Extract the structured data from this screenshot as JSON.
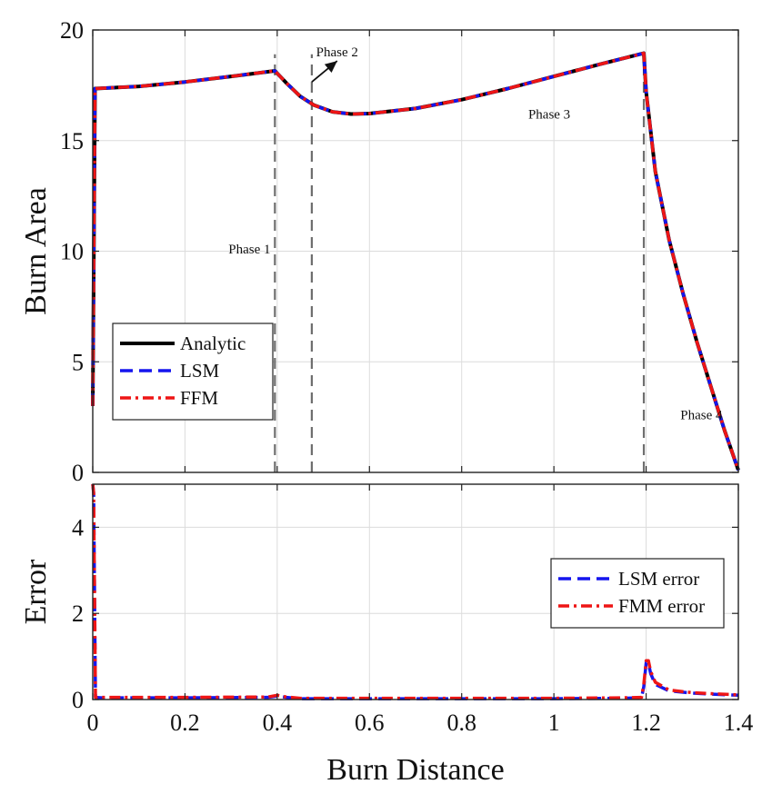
{
  "chart_data": [
    {
      "type": "line",
      "xlabel": "",
      "ylabel": "Burn Area",
      "xlim": [
        0,
        1.4
      ],
      "ylim": [
        0,
        20
      ],
      "xticks": [
        0,
        0.2,
        0.4,
        0.6,
        0.8,
        1,
        1.2,
        1.4
      ],
      "xtick_labels": [
        "",
        "",
        "",
        "",
        "",
        "",
        "",
        ""
      ],
      "yticks": [
        0,
        5,
        10,
        15,
        20
      ],
      "ytick_labels": [
        "0",
        "5",
        "10",
        "15",
        "20"
      ],
      "grid": true,
      "legend_position": "lower-left",
      "series": [
        {
          "name": "Analytic",
          "color": "#000000",
          "style": "solid",
          "x": [
            0,
            0.005,
            0.1,
            0.2,
            0.3,
            0.395,
            0.42,
            0.45,
            0.48,
            0.52,
            0.56,
            0.6,
            0.7,
            0.8,
            0.9,
            1.0,
            1.1,
            1.195,
            1.2,
            1.22,
            1.25,
            1.28,
            1.31,
            1.34,
            1.37,
            1.4
          ],
          "y": [
            3.0,
            17.35,
            17.45,
            17.65,
            17.9,
            18.15,
            17.6,
            17.0,
            16.6,
            16.3,
            16.2,
            16.22,
            16.45,
            16.85,
            17.35,
            17.9,
            18.45,
            18.95,
            17.2,
            13.6,
            10.5,
            8.1,
            5.9,
            3.9,
            1.9,
            0.1
          ]
        },
        {
          "name": "LSM",
          "color": "#1515ee",
          "style": "dashed",
          "x": [
            0,
            0.005,
            0.1,
            0.2,
            0.3,
            0.395,
            0.42,
            0.45,
            0.48,
            0.52,
            0.56,
            0.6,
            0.7,
            0.8,
            0.9,
            1.0,
            1.1,
            1.195,
            1.2,
            1.22,
            1.25,
            1.28,
            1.31,
            1.34,
            1.37,
            1.4
          ],
          "y": [
            3.0,
            17.35,
            17.45,
            17.65,
            17.9,
            18.15,
            17.6,
            17.0,
            16.6,
            16.3,
            16.2,
            16.22,
            16.45,
            16.85,
            17.35,
            17.9,
            18.45,
            18.95,
            17.2,
            13.6,
            10.5,
            8.1,
            5.9,
            3.9,
            1.9,
            0.1
          ]
        },
        {
          "name": "FFM",
          "color": "#ee1515",
          "style": "dashdot",
          "x": [
            0,
            0.005,
            0.1,
            0.2,
            0.3,
            0.395,
            0.42,
            0.45,
            0.48,
            0.52,
            0.56,
            0.6,
            0.7,
            0.8,
            0.9,
            1.0,
            1.1,
            1.195,
            1.2,
            1.22,
            1.25,
            1.28,
            1.31,
            1.34,
            1.37,
            1.4
          ],
          "y": [
            3.0,
            17.35,
            17.45,
            17.65,
            17.9,
            18.15,
            17.6,
            17.0,
            16.6,
            16.3,
            16.2,
            16.22,
            16.45,
            16.85,
            17.35,
            17.9,
            18.45,
            18.95,
            17.2,
            13.6,
            10.5,
            8.1,
            5.9,
            3.9,
            1.9,
            0.1
          ]
        }
      ],
      "phase_boundaries": [
        0.395,
        0.475,
        1.195
      ],
      "annotations": [
        {
          "text": "Phase 1",
          "x": 0.34,
          "y": 9.9
        },
        {
          "text": "Phase 2",
          "x": 0.53,
          "y": 18.8
        },
        {
          "text": "Phase 3",
          "x": 0.99,
          "y": 16.0
        },
        {
          "text": "Phase 4",
          "x": 1.32,
          "y": 2.4
        }
      ],
      "arrow": {
        "from": [
          0.475,
          17.65
        ],
        "to": [
          0.53,
          18.6
        ]
      }
    },
    {
      "type": "line",
      "xlabel": "Burn Distance",
      "ylabel": "Error",
      "xlim": [
        0,
        1.4
      ],
      "ylim": [
        0,
        5
      ],
      "xticks": [
        0,
        0.2,
        0.4,
        0.6,
        0.8,
        1,
        1.2,
        1.4
      ],
      "xtick_labels": [
        "0",
        "0.2",
        "0.4",
        "0.6",
        "0.8",
        "1",
        "1.2",
        "1.4"
      ],
      "yticks": [
        0,
        2,
        4
      ],
      "ytick_labels": [
        "0",
        "2",
        "4"
      ],
      "grid": true,
      "legend_position": "top-right",
      "series": [
        {
          "name": "LSM error",
          "color": "#1515ee",
          "style": "dashed",
          "x": [
            0,
            0.002,
            0.006,
            0.02,
            0.2,
            0.38,
            0.4,
            0.42,
            0.45,
            0.6,
            0.8,
            1.0,
            1.15,
            1.19,
            1.195,
            1.2,
            1.205,
            1.21,
            1.22,
            1.25,
            1.3,
            1.35,
            1.4
          ],
          "y": [
            5.0,
            4.8,
            0.05,
            0.04,
            0.04,
            0.05,
            0.08,
            0.05,
            0.02,
            0.02,
            0.02,
            0.02,
            0.03,
            0.04,
            0.3,
            0.85,
            0.85,
            0.6,
            0.35,
            0.2,
            0.15,
            0.12,
            0.1
          ]
        },
        {
          "name": "FMM error",
          "color": "#ee1515",
          "style": "dashdot",
          "x": [
            0,
            0.002,
            0.006,
            0.02,
            0.2,
            0.38,
            0.4,
            0.42,
            0.45,
            0.6,
            0.8,
            1.0,
            1.15,
            1.19,
            1.195,
            1.2,
            1.205,
            1.21,
            1.22,
            1.25,
            1.3,
            1.35,
            1.4
          ],
          "y": [
            5.0,
            4.8,
            0.05,
            0.05,
            0.05,
            0.06,
            0.1,
            0.06,
            0.03,
            0.03,
            0.03,
            0.03,
            0.04,
            0.05,
            0.35,
            0.9,
            0.9,
            0.65,
            0.4,
            0.22,
            0.16,
            0.13,
            0.11
          ]
        }
      ]
    }
  ]
}
